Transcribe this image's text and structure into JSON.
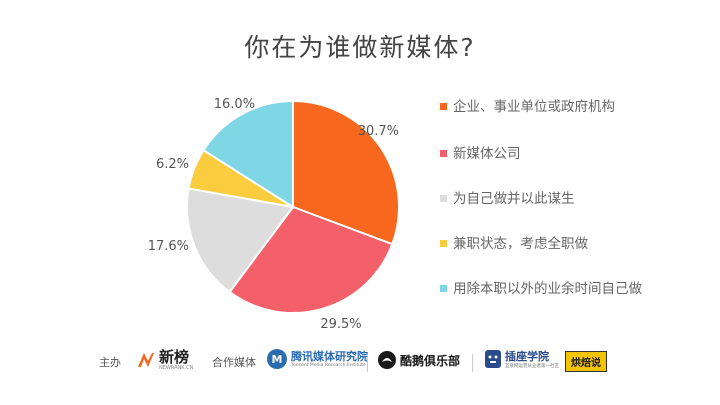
{
  "chart_data": {
    "type": "pie",
    "title": "你在为谁做新媒体?",
    "slices": [
      {
        "label": "企业、事业单位或政府机构",
        "value": 30.7,
        "display": "30.7%",
        "color": "#F7671E"
      },
      {
        "label": "新媒体公司",
        "value": 29.5,
        "display": "29.5%",
        "color": "#F4606A"
      },
      {
        "label": "为自己做并以此谋生",
        "value": 17.6,
        "display": "17.6%",
        "color": "#DDDDDD"
      },
      {
        "label": "兼职状态，考虑全职做",
        "value": 6.2,
        "display": "6.2%",
        "color": "#FACC3E"
      },
      {
        "label": "用除本职以外的业余时间自己做",
        "value": 16.0,
        "display": "16.0%",
        "color": "#7FD6E5"
      }
    ],
    "legend_position": "right"
  },
  "footer": {
    "host_label": "主办",
    "host_logo": "新榜",
    "host_logo_sub": "NEWRANK.CN",
    "partner_label": "合作媒体",
    "partners": [
      {
        "name": "腾讯媒体研究院",
        "sub": "Tencent Media Research Institute"
      },
      {
        "name": "酷鹅俱乐部"
      },
      {
        "name": "插座学院",
        "sub": "互联网运营从业者第一社区"
      },
      {
        "name": "烘焙说"
      }
    ]
  }
}
